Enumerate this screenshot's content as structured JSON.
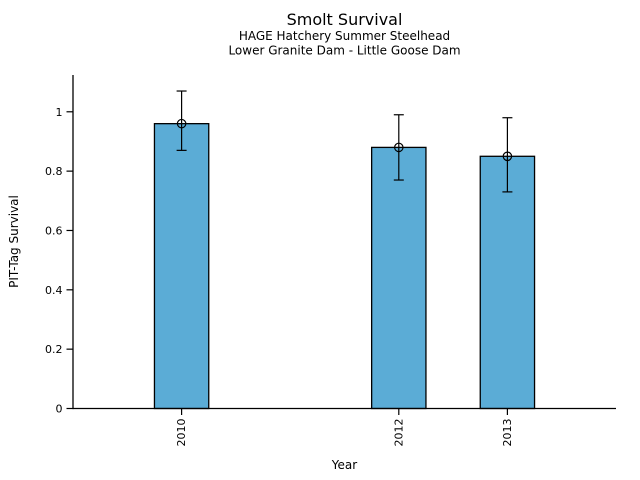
{
  "chart_data": {
    "type": "bar",
    "title": "Smolt Survival",
    "subtitles": [
      "HAGE Hatchery Summer Steelhead",
      "Lower Granite Dam - Little Goose Dam"
    ],
    "xlabel": "Year",
    "ylabel": "PIT-Tag Survival",
    "categories": [
      "2010",
      "2012",
      "2013"
    ],
    "x": [
      2010,
      2012,
      2013
    ],
    "values": [
      0.96,
      0.88,
      0.85
    ],
    "error_low": [
      0.87,
      0.77,
      0.73
    ],
    "error_high": [
      1.07,
      0.99,
      0.98
    ],
    "bar_width_years": 0.5,
    "xlim": [
      2009,
      2014
    ],
    "ylim": [
      0,
      1.124
    ],
    "yticks": [
      0,
      0.2,
      0.4,
      0.6,
      0.8,
      1
    ],
    "ytick_labels": [
      "0",
      "0.2",
      "0.4",
      "0.6",
      "0.8",
      "1"
    ],
    "grid": false,
    "legend_position": "none",
    "marker": "open-circle",
    "colors": {
      "bar_fill": "#5BACD6",
      "bar_edge": "#000000",
      "error_bar": "#000000",
      "axis": "#000000",
      "text": "#000000",
      "background": "#FFFFFF"
    }
  }
}
